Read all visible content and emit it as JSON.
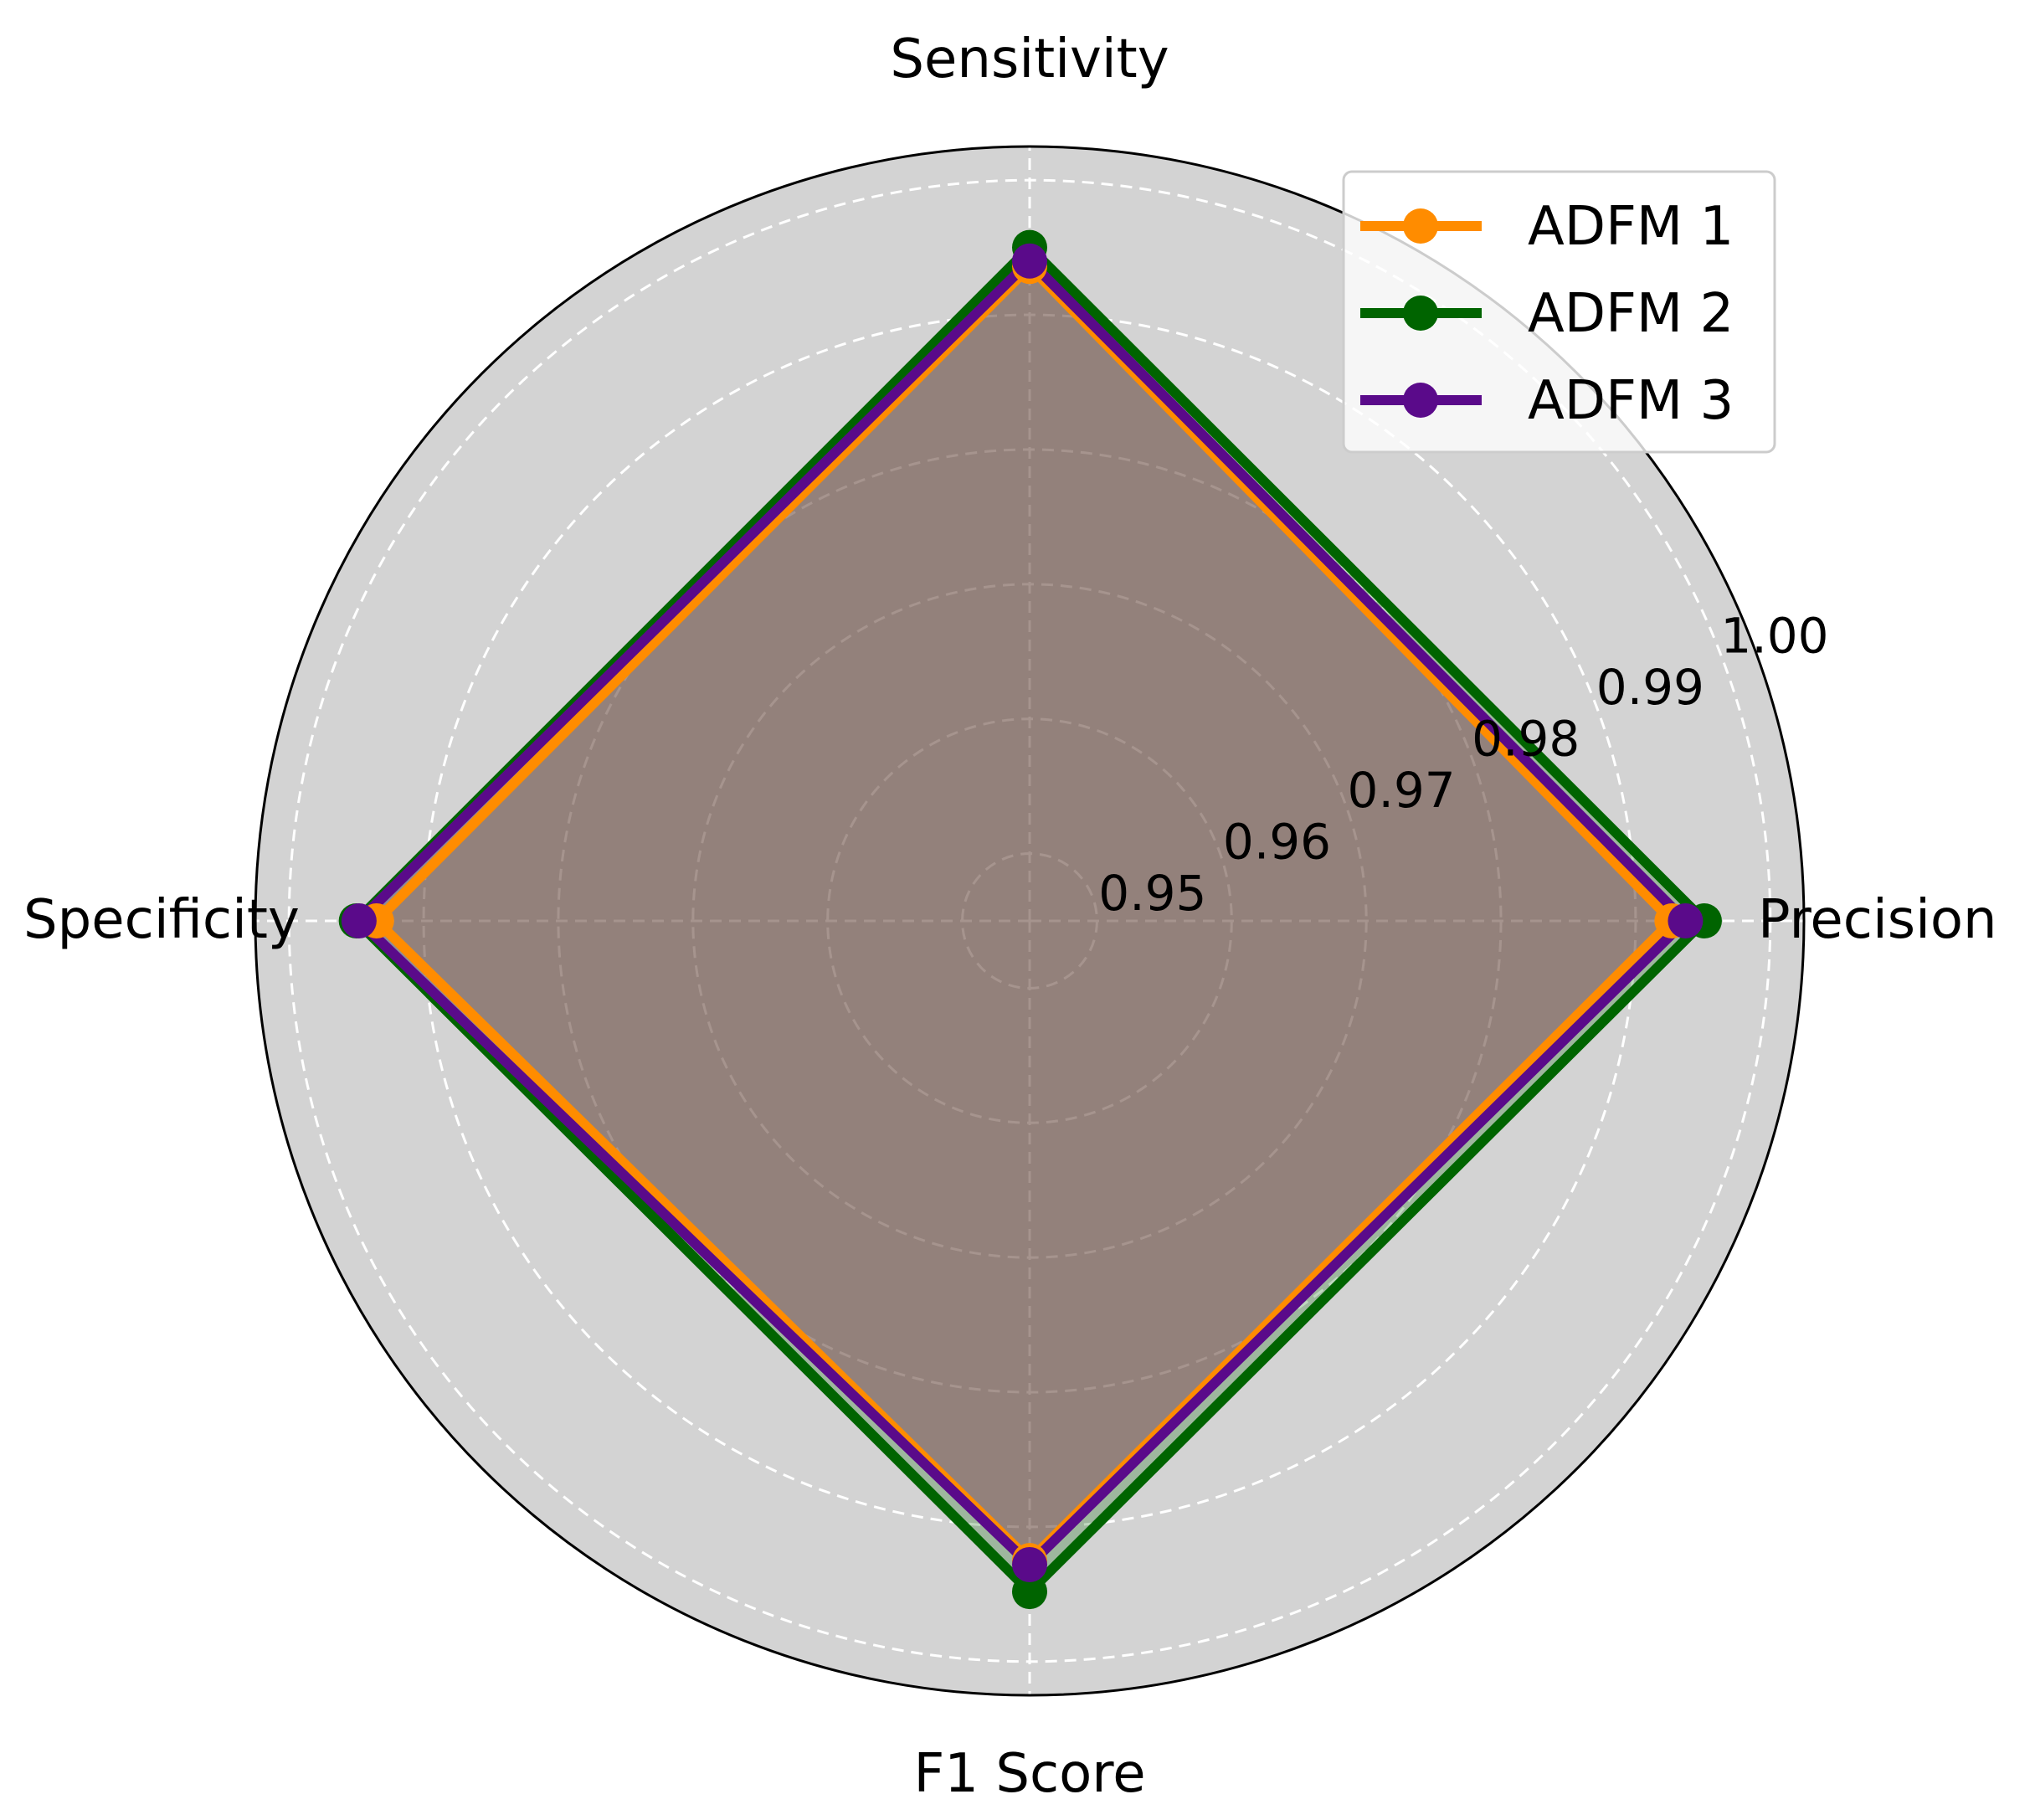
{
  "chart_data": {
    "type": "radar",
    "axes": [
      "Precision",
      "Sensitivity",
      "Specificity",
      "F1 Score"
    ],
    "r_range": [
      0.945,
      1.0025
    ],
    "r_ticks": [
      "0.95",
      "0.96",
      "0.97",
      "0.98",
      "0.99",
      "1.00"
    ],
    "r_tick_values": [
      0.95,
      0.96,
      0.97,
      0.98,
      0.99,
      1.0
    ],
    "grid": true,
    "legend_position": "top-right",
    "series": [
      {
        "name": "ADFM 1",
        "color": "#ff8c00",
        "values": [
          0.9927,
          0.9936,
          0.9935,
          0.9925
        ]
      },
      {
        "name": "ADFM 2",
        "color": "#006400",
        "values": [
          0.9951,
          0.995,
          0.995,
          0.9948
        ]
      },
      {
        "name": "ADFM 3",
        "color": "#5a0a8a",
        "values": [
          0.9937,
          0.994,
          0.9948,
          0.9928
        ]
      }
    ]
  }
}
